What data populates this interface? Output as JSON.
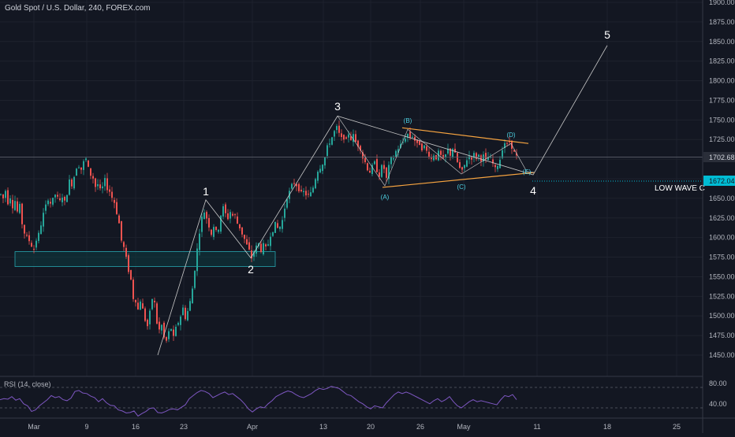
{
  "header": {
    "symbol_line": "Gold Spot / U.S. Dollar, 240, FOREX.com"
  },
  "rsi": {
    "label": "RSI (14, close)",
    "levels": [
      80,
      40
    ],
    "level_labels": [
      "80.00",
      "40.00"
    ],
    "color": "#7e57c2"
  },
  "colors": {
    "background": "#131722",
    "up": "#26a69a",
    "down": "#ef5350",
    "grid": "#1e222d",
    "text": "#b2b5be",
    "wave": "#c9c9c9",
    "triangle": "#f7a440",
    "box": "#0d3a40",
    "dotted": "#00bcd4"
  },
  "chart_data": {
    "type": "candlestick",
    "title": "Gold Spot / U.S. Dollar, 240, FOREX.com",
    "ylim": [
      1425,
      1910
    ],
    "y_ticks": [
      "1900.00",
      "1875.00",
      "1850.00",
      "1825.00",
      "1800.00",
      "1775.00",
      "1750.00",
      "1725.00",
      "1700.00",
      "1675.00",
      "1650.00",
      "1625.00",
      "1600.00",
      "1575.00",
      "1550.00",
      "1525.00",
      "1500.00",
      "1475.00",
      "1450.00"
    ],
    "x_ticks": [
      "Mar",
      "9",
      "16",
      "23",
      "Apr",
      "13",
      "20",
      "26",
      "May",
      "11",
      "18",
      "25"
    ],
    "price_labels": [
      {
        "text": "1702.68",
        "value": 1702.68
      },
      {
        "text": "1672.04",
        "value": 1672.04
      }
    ],
    "horizontal_line_label": "LOW WAVE C",
    "support_zone": [
      1563,
      1582
    ],
    "wave_labels": [
      "1",
      "2",
      "3",
      "4",
      "5"
    ],
    "triangle_labels": [
      "(A)",
      "(B)",
      "(C)",
      "(D)",
      "(E)"
    ],
    "price_path": [
      [
        0,
        1655
      ],
      [
        3,
        1650
      ],
      [
        6,
        1660
      ],
      [
        9,
        1645
      ],
      [
        12,
        1652
      ],
      [
        15,
        1640
      ],
      [
        18,
        1647
      ],
      [
        21,
        1633
      ],
      [
        24,
        1640
      ],
      [
        27,
        1618
      ],
      [
        30,
        1606
      ],
      [
        33,
        1600
      ],
      [
        36,
        1596
      ],
      [
        39,
        1590
      ],
      [
        42,
        1585
      ],
      [
        45,
        1597
      ],
      [
        48,
        1604
      ],
      [
        51,
        1617
      ],
      [
        54,
        1630
      ],
      [
        57,
        1640
      ],
      [
        60,
        1650
      ],
      [
        63,
        1644
      ],
      [
        66,
        1648
      ],
      [
        69,
        1655
      ],
      [
        72,
        1650
      ],
      [
        75,
        1646
      ],
      [
        78,
        1653
      ],
      [
        81,
        1645
      ],
      [
        84,
        1657
      ],
      [
        87,
        1672
      ],
      [
        90,
        1668
      ],
      [
        93,
        1678
      ],
      [
        96,
        1690
      ],
      [
        99,
        1692
      ],
      [
        102,
        1687
      ],
      [
        105,
        1696
      ],
      [
        108,
        1700
      ],
      [
        111,
        1688
      ],
      [
        114,
        1680
      ],
      [
        117,
        1676
      ],
      [
        120,
        1665
      ],
      [
        123,
        1668
      ],
      [
        126,
        1660
      ],
      [
        129,
        1664
      ],
      [
        132,
        1673
      ],
      [
        135,
        1663
      ],
      [
        138,
        1659
      ],
      [
        141,
        1651
      ],
      [
        144,
        1645
      ],
      [
        147,
        1632
      ],
      [
        150,
        1618
      ],
      [
        153,
        1596
      ],
      [
        156,
        1587
      ],
      [
        159,
        1573
      ],
      [
        162,
        1558
      ],
      [
        165,
        1546
      ],
      [
        168,
        1523
      ],
      [
        171,
        1520
      ],
      [
        174,
        1508
      ],
      [
        177,
        1520
      ],
      [
        180,
        1508
      ],
      [
        183,
        1495
      ],
      [
        186,
        1487
      ],
      [
        189,
        1504
      ],
      [
        192,
        1522
      ],
      [
        195,
        1516
      ],
      [
        198,
        1491
      ],
      [
        201,
        1482
      ],
      [
        204,
        1488
      ],
      [
        207,
        1472
      ],
      [
        210,
        1468
      ],
      [
        213,
        1479
      ],
      [
        216,
        1484
      ],
      [
        219,
        1472
      ],
      [
        222,
        1484
      ],
      [
        225,
        1492
      ],
      [
        228,
        1500
      ],
      [
        231,
        1510
      ],
      [
        234,
        1498
      ],
      [
        237,
        1506
      ],
      [
        240,
        1518
      ],
      [
        243,
        1535
      ],
      [
        246,
        1560
      ],
      [
        249,
        1585
      ],
      [
        252,
        1608
      ],
      [
        255,
        1625
      ],
      [
        258,
        1633
      ],
      [
        261,
        1625
      ],
      [
        264,
        1615
      ],
      [
        267,
        1605
      ],
      [
        270,
        1615
      ],
      [
        273,
        1607
      ],
      [
        276,
        1612
      ],
      [
        279,
        1629
      ],
      [
        282,
        1638
      ],
      [
        285,
        1630
      ],
      [
        288,
        1625
      ],
      [
        291,
        1633
      ],
      [
        294,
        1628
      ],
      [
        297,
        1628
      ],
      [
        300,
        1618
      ],
      [
        303,
        1613
      ],
      [
        306,
        1605
      ],
      [
        309,
        1598
      ],
      [
        312,
        1590
      ],
      [
        315,
        1583
      ],
      [
        318,
        1574
      ],
      [
        321,
        1582
      ],
      [
        324,
        1588
      ],
      [
        327,
        1592
      ],
      [
        330,
        1584
      ],
      [
        333,
        1590
      ],
      [
        336,
        1586
      ],
      [
        339,
        1592
      ],
      [
        342,
        1604
      ],
      [
        345,
        1610
      ],
      [
        348,
        1617
      ],
      [
        351,
        1612
      ],
      [
        354,
        1614
      ],
      [
        357,
        1622
      ],
      [
        360,
        1638
      ],
      [
        363,
        1652
      ],
      [
        366,
        1658
      ],
      [
        369,
        1666
      ],
      [
        372,
        1670
      ],
      [
        375,
        1667
      ],
      [
        378,
        1662
      ],
      [
        381,
        1656
      ],
      [
        384,
        1658
      ],
      [
        387,
        1655
      ],
      [
        390,
        1654
      ],
      [
        393,
        1656
      ],
      [
        396,
        1664
      ],
      [
        399,
        1676
      ],
      [
        402,
        1686
      ],
      [
        405,
        1690
      ],
      [
        408,
        1695
      ],
      [
        411,
        1702
      ],
      [
        414,
        1715
      ],
      [
        417,
        1722
      ],
      [
        420,
        1728
      ],
      [
        423,
        1735
      ],
      [
        426,
        1740
      ],
      [
        429,
        1732
      ],
      [
        432,
        1726
      ],
      [
        435,
        1728
      ],
      [
        438,
        1723
      ],
      [
        441,
        1733
      ],
      [
        444,
        1726
      ],
      [
        447,
        1730
      ],
      [
        450,
        1722
      ],
      [
        453,
        1718
      ],
      [
        456,
        1714
      ],
      [
        459,
        1702
      ],
      [
        462,
        1696
      ],
      [
        465,
        1688
      ],
      [
        468,
        1684
      ],
      [
        471,
        1690
      ],
      [
        474,
        1695
      ],
      [
        477,
        1686
      ],
      [
        480,
        1680
      ],
      [
        483,
        1690
      ],
      [
        486,
        1688
      ],
      [
        489,
        1675
      ],
      [
        492,
        1690
      ],
      [
        495,
        1700
      ],
      [
        498,
        1702
      ],
      [
        501,
        1710
      ],
      [
        504,
        1714
      ],
      [
        507,
        1718
      ],
      [
        510,
        1722
      ],
      [
        513,
        1728
      ],
      [
        516,
        1732
      ],
      [
        519,
        1728
      ],
      [
        522,
        1730
      ],
      [
        525,
        1724
      ],
      [
        528,
        1718
      ],
      [
        531,
        1720
      ],
      [
        534,
        1714
      ],
      [
        537,
        1716
      ],
      [
        540,
        1710
      ],
      [
        543,
        1706
      ],
      [
        546,
        1700
      ],
      [
        549,
        1706
      ],
      [
        552,
        1702
      ],
      [
        555,
        1708
      ],
      [
        558,
        1704
      ],
      [
        561,
        1698
      ],
      [
        564,
        1705
      ],
      [
        567,
        1712
      ],
      [
        570,
        1706
      ],
      [
        573,
        1714
      ],
      [
        576,
        1706
      ],
      [
        579,
        1696
      ],
      [
        582,
        1688
      ],
      [
        585,
        1684
      ],
      [
        588,
        1692
      ],
      [
        591,
        1700
      ],
      [
        594,
        1704
      ],
      [
        597,
        1702
      ],
      [
        600,
        1706
      ],
      [
        603,
        1702
      ],
      [
        606,
        1705
      ],
      [
        609,
        1700
      ],
      [
        612,
        1704
      ],
      [
        615,
        1698
      ],
      [
        618,
        1702
      ],
      [
        621,
        1700
      ],
      [
        624,
        1694
      ],
      [
        627,
        1687
      ],
      [
        630,
        1693
      ],
      [
        633,
        1700
      ],
      [
        636,
        1714
      ],
      [
        639,
        1721
      ],
      [
        642,
        1718
      ],
      [
        645,
        1722
      ],
      [
        648,
        1716
      ],
      [
        651,
        1708
      ],
      [
        654,
        1703
      ]
    ],
    "rsi_path": [
      [
        0,
        56
      ],
      [
        5,
        58
      ],
      [
        10,
        57
      ],
      [
        15,
        62
      ],
      [
        20,
        55
      ],
      [
        25,
        58
      ],
      [
        30,
        48
      ],
      [
        35,
        44
      ],
      [
        40,
        33
      ],
      [
        45,
        36
      ],
      [
        50,
        44
      ],
      [
        55,
        50
      ],
      [
        60,
        56
      ],
      [
        65,
        64
      ],
      [
        70,
        60
      ],
      [
        75,
        62
      ],
      [
        80,
        56
      ],
      [
        85,
        54
      ],
      [
        90,
        59
      ],
      [
        95,
        72
      ],
      [
        100,
        74
      ],
      [
        105,
        69
      ],
      [
        110,
        68
      ],
      [
        115,
        63
      ],
      [
        120,
        60
      ],
      [
        125,
        52
      ],
      [
        130,
        58
      ],
      [
        135,
        50
      ],
      [
        140,
        45
      ],
      [
        145,
        44
      ],
      [
        150,
        36
      ],
      [
        155,
        34
      ],
      [
        160,
        30
      ],
      [
        165,
        31
      ],
      [
        170,
        34
      ],
      [
        175,
        24
      ],
      [
        180,
        29
      ],
      [
        185,
        33
      ],
      [
        190,
        39
      ],
      [
        195,
        40
      ],
      [
        200,
        31
      ],
      [
        205,
        30
      ],
      [
        210,
        33
      ],
      [
        215,
        37
      ],
      [
        220,
        38
      ],
      [
        225,
        36
      ],
      [
        230,
        41
      ],
      [
        235,
        46
      ],
      [
        240,
        58
      ],
      [
        245,
        64
      ],
      [
        250,
        70
      ],
      [
        255,
        74
      ],
      [
        260,
        72
      ],
      [
        265,
        68
      ],
      [
        270,
        60
      ],
      [
        275,
        64
      ],
      [
        280,
        68
      ],
      [
        285,
        71
      ],
      [
        290,
        66
      ],
      [
        295,
        68
      ],
      [
        300,
        62
      ],
      [
        305,
        56
      ],
      [
        310,
        48
      ],
      [
        315,
        38
      ],
      [
        320,
        32
      ],
      [
        325,
        38
      ],
      [
        330,
        42
      ],
      [
        335,
        40
      ],
      [
        340,
        48
      ],
      [
        345,
        54
      ],
      [
        350,
        62
      ],
      [
        355,
        66
      ],
      [
        360,
        70
      ],
      [
        365,
        73
      ],
      [
        370,
        71
      ],
      [
        375,
        66
      ],
      [
        380,
        62
      ],
      [
        385,
        60
      ],
      [
        390,
        64
      ],
      [
        395,
        68
      ],
      [
        400,
        74
      ],
      [
        405,
        78
      ],
      [
        410,
        76
      ],
      [
        415,
        78
      ],
      [
        420,
        82
      ],
      [
        425,
        80
      ],
      [
        430,
        78
      ],
      [
        435,
        72
      ],
      [
        440,
        66
      ],
      [
        445,
        64
      ],
      [
        450,
        58
      ],
      [
        455,
        52
      ],
      [
        460,
        48
      ],
      [
        465,
        42
      ],
      [
        470,
        38
      ],
      [
        475,
        44
      ],
      [
        480,
        42
      ],
      [
        485,
        40
      ],
      [
        490,
        50
      ],
      [
        495,
        58
      ],
      [
        500,
        66
      ],
      [
        505,
        71
      ],
      [
        510,
        68
      ],
      [
        515,
        71
      ],
      [
        520,
        68
      ],
      [
        525,
        64
      ],
      [
        530,
        60
      ],
      [
        535,
        56
      ],
      [
        540,
        52
      ],
      [
        545,
        48
      ],
      [
        550,
        54
      ],
      [
        555,
        58
      ],
      [
        560,
        52
      ],
      [
        565,
        56
      ],
      [
        570,
        62
      ],
      [
        575,
        52
      ],
      [
        580,
        44
      ],
      [
        585,
        40
      ],
      [
        590,
        46
      ],
      [
        595,
        52
      ],
      [
        600,
        56
      ],
      [
        605,
        52
      ],
      [
        610,
        54
      ],
      [
        615,
        52
      ],
      [
        620,
        50
      ],
      [
        625,
        48
      ],
      [
        630,
        46
      ],
      [
        635,
        56
      ],
      [
        640,
        64
      ],
      [
        645,
        62
      ],
      [
        650,
        66
      ],
      [
        655,
        56
      ]
    ]
  }
}
